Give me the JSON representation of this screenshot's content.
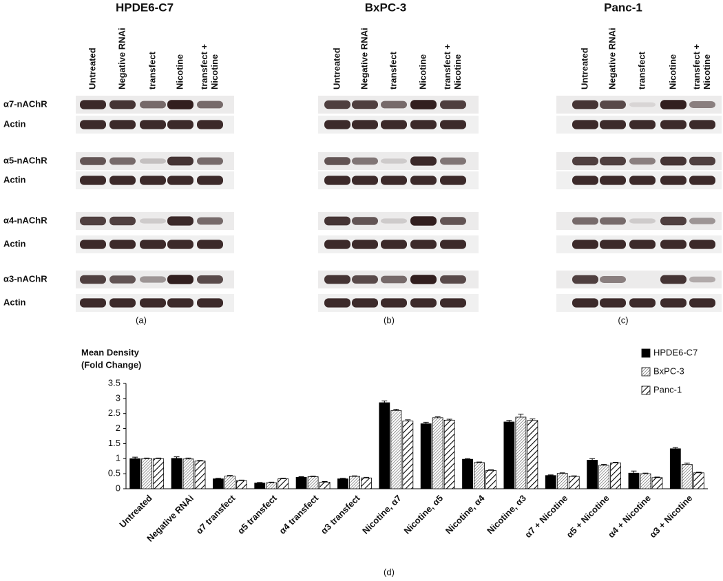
{
  "blots": {
    "rows": [
      "α7-nAChR",
      "Actin",
      "α5-nAChR",
      "Actin",
      "α4-nAChR",
      "Actin",
      "α3-nAChR",
      "Actin"
    ],
    "panels": [
      {
        "title": "HPDE6-C7",
        "caption": "(a)",
        "lanes": [
          [
            "Untreated"
          ],
          [
            "Negative RNAi"
          ],
          [
            "transfect"
          ],
          [
            "Nicotine"
          ],
          [
            "transfect +",
            "Nicotine"
          ]
        ]
      },
      {
        "title": "BxPC-3",
        "caption": "(b)",
        "lanes": [
          [
            "Untreated"
          ],
          [
            "Negative RNAi"
          ],
          [
            "transfect"
          ],
          [
            "Nicotine"
          ],
          [
            "transfect +",
            "Nicotine"
          ]
        ]
      },
      {
        "title": "Panc-1",
        "caption": "(c)",
        "lanes": [
          [
            "Untreated"
          ],
          [
            "Negative RNAi"
          ],
          [
            "transfect"
          ],
          [
            "Nicotine"
          ],
          [
            "transfect +",
            "Nicotine"
          ]
        ]
      }
    ]
  },
  "chart_data": {
    "type": "bar",
    "caption": "(d)",
    "ylabel": [
      "Mean Density",
      "(Fold Change)"
    ],
    "categories": [
      "Untreated",
      "Negative RNAi",
      "α7 transfect",
      "α5 transfect",
      "α4 transfect",
      "α3 transfect",
      "Nicotine, α7",
      "Nicotine, α5",
      "Nicotine, α4",
      "Nicotine, α3",
      "α7 + Nicotine",
      "α5 + Nicotine",
      "α4 + Nicotine",
      "α3 + Nicotine"
    ],
    "series": [
      {
        "name": "HPDE6-C7",
        "color": "#000000",
        "pattern": "solid",
        "values": [
          1.0,
          1.01,
          0.33,
          0.19,
          0.38,
          0.33,
          2.86,
          2.16,
          0.98,
          2.22,
          0.44,
          0.95,
          0.52,
          1.33
        ],
        "errors": [
          0.05,
          0.05,
          0.02,
          0.02,
          0.02,
          0.02,
          0.06,
          0.05,
          0.02,
          0.05,
          0.02,
          0.05,
          0.07,
          0.04
        ]
      },
      {
        "name": "BxPC-3",
        "color": "#555555",
        "pattern": "dense-hatch",
        "values": [
          1.0,
          0.99,
          0.42,
          0.2,
          0.4,
          0.41,
          2.6,
          2.36,
          0.87,
          2.38,
          0.51,
          0.78,
          0.5,
          0.81
        ],
        "errors": [
          0.02,
          0.03,
          0.02,
          0.02,
          0.02,
          0.02,
          0.04,
          0.03,
          0.02,
          0.1,
          0.02,
          0.03,
          0.02,
          0.04
        ]
      },
      {
        "name": "Panc-1",
        "color": "#000000",
        "pattern": "hatch",
        "values": [
          1.0,
          0.92,
          0.27,
          0.33,
          0.22,
          0.36,
          2.25,
          2.28,
          0.61,
          2.27,
          0.41,
          0.86,
          0.37,
          0.53
        ],
        "errors": [
          0.02,
          0.02,
          0.02,
          0.02,
          0.02,
          0.02,
          0.04,
          0.03,
          0.02,
          0.05,
          0.02,
          0.02,
          0.02,
          0.02
        ]
      }
    ],
    "ylim": [
      0,
      3.5
    ],
    "yticks": [
      0,
      0.5,
      1,
      1.5,
      2,
      2.5,
      3,
      3.5
    ],
    "legend": "upper right",
    "grid": false
  }
}
